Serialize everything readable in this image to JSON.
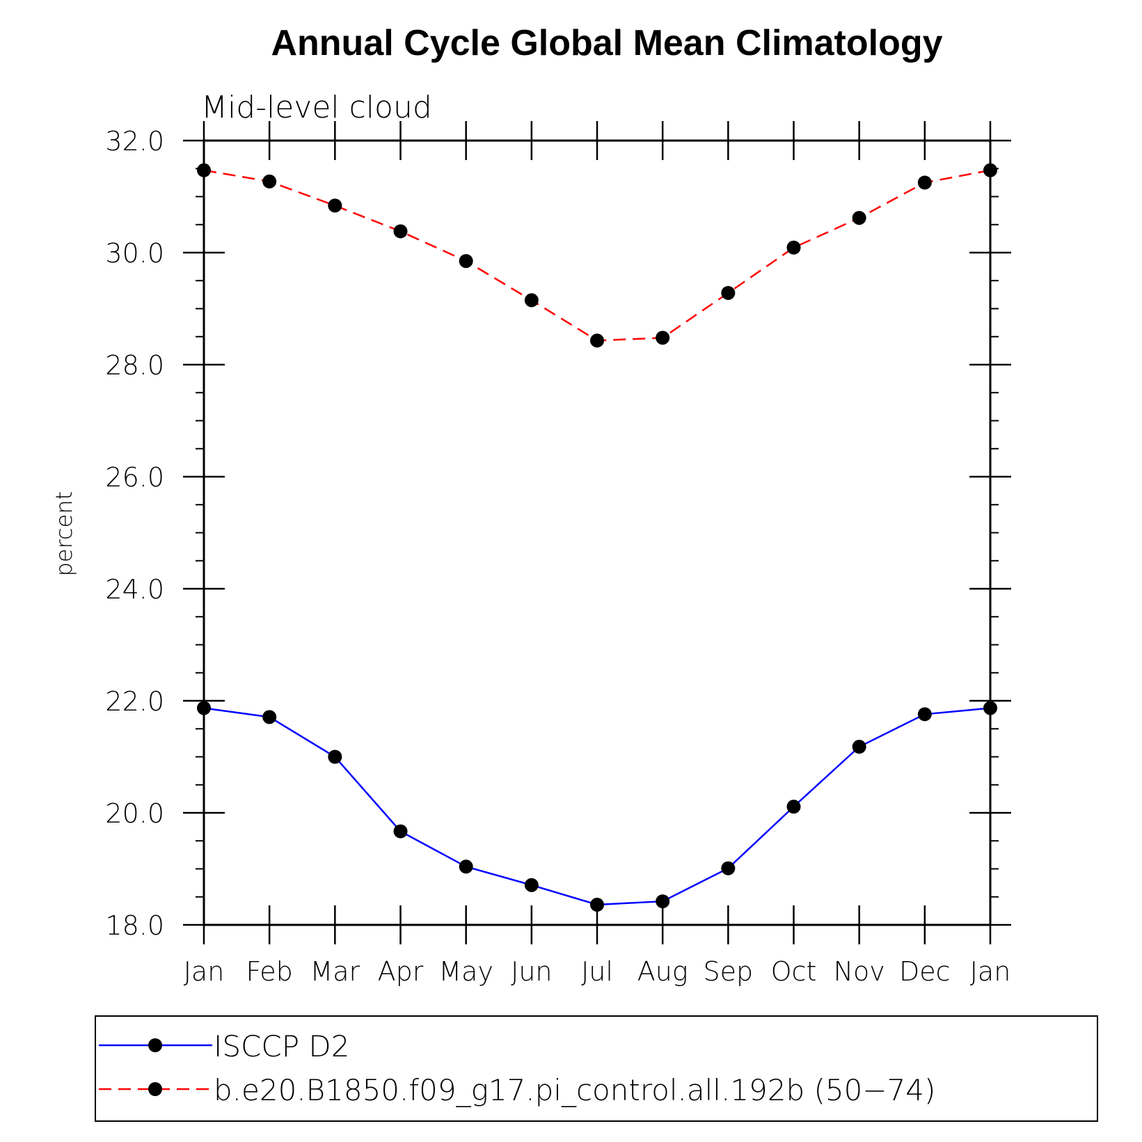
{
  "chart_data": {
    "type": "line",
    "title": "Annual Cycle Global Mean Climatology",
    "subtitle": "Mid-level cloud",
    "ylabel": "percent",
    "xlabel": "",
    "categories": [
      "Jan",
      "Feb",
      "Mar",
      "Apr",
      "May",
      "Jun",
      "Jul",
      "Aug",
      "Sep",
      "Oct",
      "Nov",
      "Dec",
      "Jan"
    ],
    "ylim": [
      18.0,
      32.0
    ],
    "yticks": [
      "18.0",
      "20.0",
      "22.0",
      "24.0",
      "26.0",
      "28.0",
      "30.0",
      "32.0"
    ],
    "ytick_values": [
      18,
      20,
      22,
      24,
      26,
      28,
      30,
      32
    ],
    "legend_position": "bottom",
    "grid": false,
    "series": [
      {
        "name": "ISCCP D2",
        "color": "#0000ff",
        "line_style": "solid",
        "marker": "filled-circle",
        "values": [
          21.87,
          21.71,
          21.0,
          19.67,
          19.04,
          18.71,
          18.36,
          18.42,
          19.01,
          20.11,
          21.18,
          21.76,
          21.87
        ]
      },
      {
        "name": "b.e20.B1850.f09_g17.pi_control.all.192b (50−74)",
        "color": "#ff0000",
        "line_style": "dashed",
        "marker": "filled-circle",
        "values": [
          31.47,
          31.27,
          30.84,
          30.38,
          29.85,
          29.15,
          28.43,
          28.48,
          29.28,
          30.09,
          30.62,
          31.25,
          31.47
        ]
      }
    ]
  }
}
